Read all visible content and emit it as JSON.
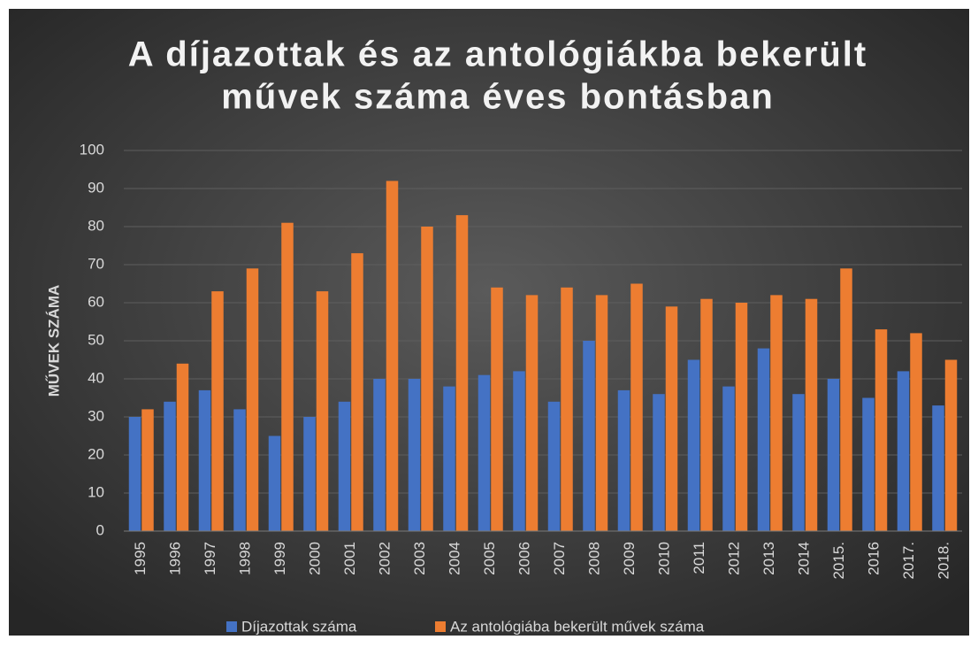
{
  "chart_data": {
    "type": "bar",
    "title": [
      "A díjazottak és az antológiákba bekerült",
      "művek száma éves bontásban"
    ],
    "ylabel": "MŰVEK SZÁMA",
    "categories": [
      "1995",
      "1996",
      "1997",
      "1998",
      "1999",
      "2000",
      "2001",
      "2002",
      "2003",
      "2004",
      "2005",
      "2006",
      "2007",
      "2008",
      "2009",
      "2010",
      "2011",
      "2012",
      "2013",
      "2014",
      "2015.",
      "2016",
      "2017.",
      "2018."
    ],
    "series": [
      {
        "name": "Díjazottak száma",
        "color": "#4472c4",
        "values": [
          30,
          34,
          37,
          32,
          25,
          30,
          34,
          40,
          40,
          38,
          41,
          42,
          34,
          50,
          37,
          36,
          45,
          38,
          48,
          36,
          40,
          35,
          42,
          33
        ]
      },
      {
        "name": "Az antológiába bekerült művek száma",
        "color": "#ed7d31",
        "values": [
          32,
          44,
          63,
          69,
          81,
          63,
          73,
          92,
          80,
          83,
          64,
          62,
          64,
          62,
          65,
          59,
          61,
          60,
          62,
          61,
          69,
          53,
          52,
          45
        ]
      }
    ],
    "ylim": [
      0,
      100
    ],
    "yticks": [
      0,
      10,
      20,
      30,
      40,
      50,
      60,
      70,
      80,
      90,
      100
    ],
    "grid": true,
    "legend": "bottom"
  }
}
